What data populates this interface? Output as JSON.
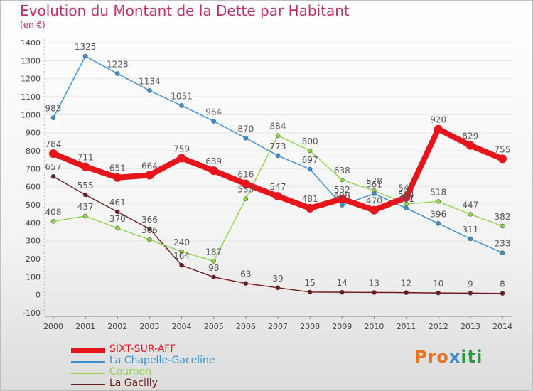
{
  "title": "Evolution du Montant de la Dette par Habitant",
  "subtitle": "(en €)",
  "logo": {
    "part1": "Pro",
    "part2": "x",
    "part3": "iti"
  },
  "colors": {
    "title": "#c03068",
    "axis": "#888888",
    "grid": "#e6e6e6"
  },
  "chart_data": {
    "type": "line",
    "x": [
      "2000",
      "2001",
      "2002",
      "2003",
      "2004",
      "2005",
      "2006",
      "2007",
      "2008",
      "2009",
      "2010",
      "2011",
      "2012",
      "2013",
      "2014"
    ],
    "ylim": [
      -100,
      1400
    ],
    "yticks": [
      -100,
      0,
      100,
      200,
      300,
      400,
      500,
      600,
      700,
      800,
      900,
      1000,
      1100,
      1200,
      1300,
      1400
    ],
    "legend_position": "bottom-left",
    "series": [
      {
        "name": "SIXT-SUR-AFF",
        "color": "#e8141c",
        "values": [
          784,
          711,
          651,
          664,
          759,
          689,
          616,
          547,
          481,
          532,
          470,
          541,
          920,
          829,
          755
        ]
      },
      {
        "name": "La Chapelle-Gaceline",
        "color": "#3a8fd0",
        "values": [
          983,
          1325,
          1228,
          1134,
          1051,
          964,
          870,
          773,
          697,
          498,
          561,
          481,
          396,
          311,
          233
        ]
      },
      {
        "name": "Cournon",
        "color": "#8fd44a",
        "values": [
          408,
          437,
          370,
          306,
          240,
          187,
          533,
          884,
          800,
          638,
          578,
          504,
          518,
          447,
          382
        ]
      },
      {
        "name": "La Gacilly",
        "color": "#6e1a1a",
        "values": [
          657,
          555,
          461,
          366,
          164,
          98,
          63,
          39,
          15,
          14,
          13,
          12,
          10,
          9,
          8
        ]
      }
    ]
  }
}
